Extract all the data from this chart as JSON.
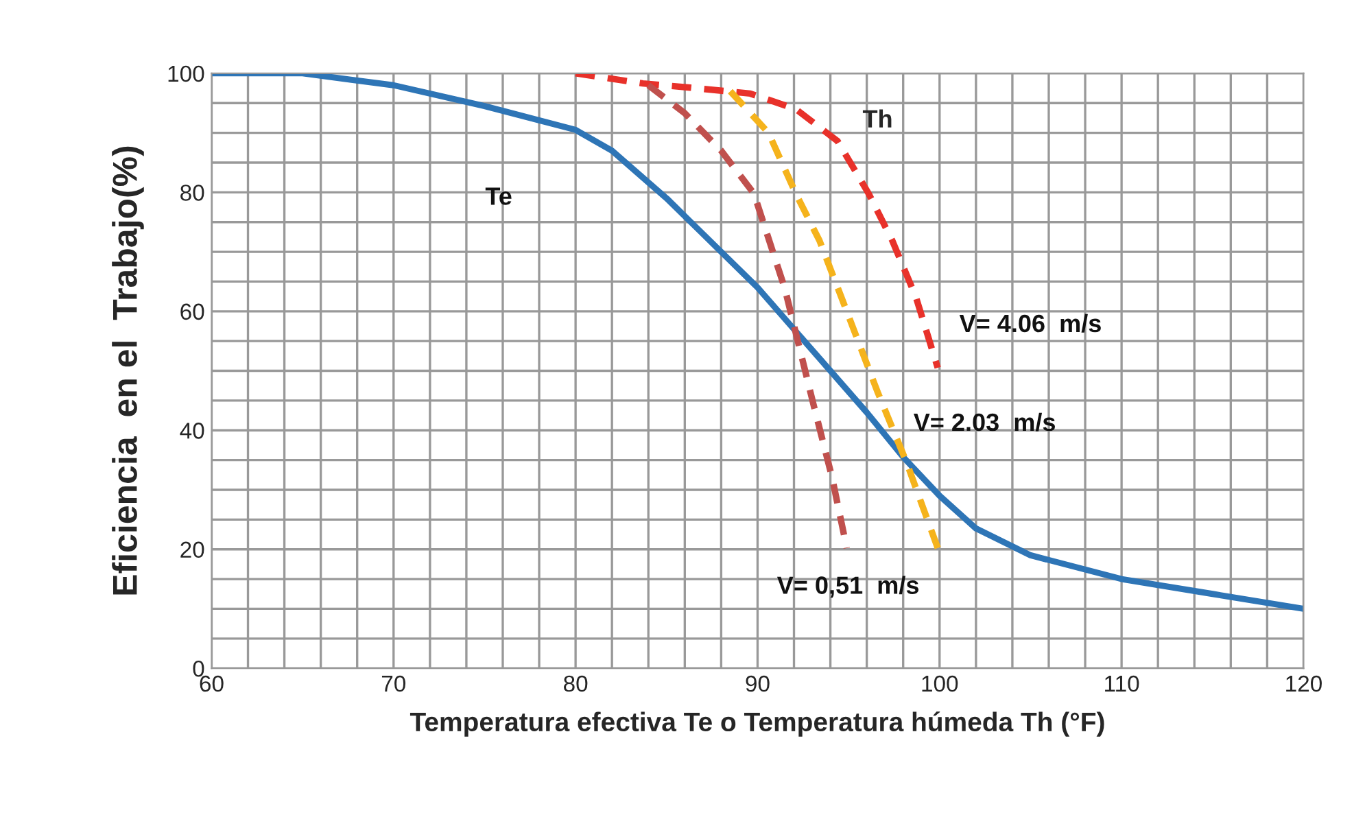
{
  "chart_data": {
    "type": "line",
    "xlabel": "Temperatura efectiva Te o Temperatura húmeda Th (°F)",
    "ylabel": "Eficiencia  en el  Trabajo(%)",
    "xlim": [
      60,
      120
    ],
    "ylim": [
      0,
      100
    ],
    "xticks": [
      60,
      {
        "value": 62,
        "label": null
      },
      {
        "value": 64,
        "label": null
      },
      {
        "value": 66,
        "label": null
      },
      {
        "value": 68,
        "label": null
      },
      70,
      {
        "value": 72,
        "label": null
      },
      {
        "value": 74,
        "label": null
      },
      {
        "value": 76,
        "label": null
      },
      {
        "value": 78,
        "label": null
      },
      80,
      {
        "value": 82,
        "label": null
      },
      {
        "value": 84,
        "label": null
      },
      {
        "value": 86,
        "label": null
      },
      {
        "value": 88,
        "label": null
      },
      90,
      {
        "value": 92,
        "label": null
      },
      {
        "value": 94,
        "label": null
      },
      {
        "value": 96,
        "label": null
      },
      {
        "value": 98,
        "label": null
      },
      100,
      {
        "value": 102,
        "label": null
      },
      {
        "value": 104,
        "label": null
      },
      {
        "value": 106,
        "label": null
      },
      {
        "value": 108,
        "label": null
      },
      110,
      {
        "value": 112,
        "label": null
      },
      {
        "value": 114,
        "label": null
      },
      {
        "value": 116,
        "label": null
      },
      {
        "value": 118,
        "label": null
      },
      120
    ],
    "yticks": [
      0,
      {
        "value": 5,
        "label": null
      },
      {
        "value": 10,
        "label": null
      },
      {
        "value": 15,
        "label": null
      },
      20,
      {
        "value": 25,
        "label": null
      },
      {
        "value": 30,
        "label": null
      },
      {
        "value": 35,
        "label": null
      },
      40,
      {
        "value": 45,
        "label": null
      },
      {
        "value": 50,
        "label": null
      },
      {
        "value": 55,
        "label": null
      },
      60,
      {
        "value": 65,
        "label": null
      },
      {
        "value": 70,
        "label": null
      },
      {
        "value": 75,
        "label": null
      },
      80,
      {
        "value": 85,
        "label": null
      },
      {
        "value": 90,
        "label": null
      },
      {
        "value": 95,
        "label": null
      },
      100
    ],
    "grid": true,
    "legend": false,
    "series": [
      {
        "name": "Te",
        "color": "#2e75b6",
        "line_style": "solid",
        "x": [
          60,
          65,
          70,
          75,
          80,
          82,
          85,
          88,
          90,
          92,
          94,
          96,
          98,
          100,
          102,
          105,
          110,
          115,
          120
        ],
        "values": [
          100,
          100,
          98,
          94.5,
          90.5,
          87,
          79,
          70,
          64,
          57,
          50,
          43,
          35.5,
          29,
          23.5,
          19,
          15,
          12.5,
          10
        ]
      },
      {
        "name": "V= 4.06  m/s",
        "color": "#e8312a",
        "line_style": "dashed",
        "x": [
          80,
          83.7,
          86.3,
          89.6,
          92.1,
          94.4,
          96.1,
          97.4,
          98.7,
          99.9
        ],
        "values": [
          100,
          98.3,
          97.6,
          96.6,
          94,
          88.6,
          79.8,
          71.9,
          62.4,
          50.5
        ]
      },
      {
        "name": "V= 2.03  m/s",
        "color": "#f5b31c",
        "line_style": "dashed",
        "x": [
          88.5,
          90.6,
          92.1,
          93.4,
          94.6,
          96.6,
          98.2,
          99.9
        ],
        "values": [
          97,
          90,
          79.8,
          71.9,
          62.4,
          46.4,
          34.5,
          20.2
        ]
      },
      {
        "name": "V= 0,51  m/s",
        "color": "#c0504d",
        "line_style": "dashed",
        "x": [
          84,
          86,
          88,
          89.8,
          91.5,
          93.1,
          94.1,
          94.9
        ],
        "values": [
          98,
          93.3,
          87,
          79.8,
          63.8,
          44,
          32,
          20.2
        ]
      }
    ],
    "annotations": [
      "Th"
    ]
  }
}
